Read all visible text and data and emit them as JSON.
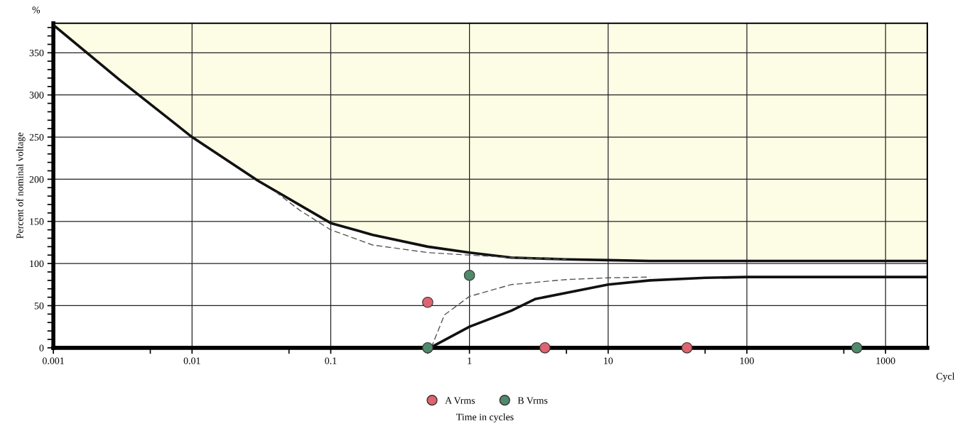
{
  "chart_data": {
    "type": "line",
    "xlabel": "Time in cycles",
    "ylabel": "Percent of nominal voltage",
    "annotations": [
      "%",
      "Cycl"
    ],
    "log": "x",
    "xlim": [
      0.001,
      2000
    ],
    "xticks": [
      0.001,
      {
        "value": 0.005,
        "label": null
      },
      0.01,
      {
        "value": 0.05,
        "label": null
      },
      0.1,
      {
        "value": 0.5,
        "label": null
      },
      1,
      {
        "value": 5,
        "label": null
      },
      10,
      {
        "value": 50,
        "label": null
      },
      100,
      {
        "value": 500,
        "label": null
      },
      1000
    ],
    "ylim": [
      0,
      385
    ],
    "yticks": [
      0,
      {
        "value": 10,
        "label": null
      },
      {
        "value": 20,
        "label": null
      },
      {
        "value": 30,
        "label": null
      },
      {
        "value": 40,
        "label": null
      },
      50,
      {
        "value": 60,
        "label": null
      },
      {
        "value": 70,
        "label": null
      },
      {
        "value": 80,
        "label": null
      },
      {
        "value": 90,
        "label": null
      },
      100,
      {
        "value": 110,
        "label": null
      },
      {
        "value": 120,
        "label": null
      },
      {
        "value": 130,
        "label": null
      },
      {
        "value": 140,
        "label": null
      },
      150,
      {
        "value": 160,
        "label": null
      },
      {
        "value": 170,
        "label": null
      },
      {
        "value": 180,
        "label": null
      },
      {
        "value": 190,
        "label": null
      },
      200,
      {
        "value": 210,
        "label": null
      },
      {
        "value": 220,
        "label": null
      },
      {
        "value": 230,
        "label": null
      },
      {
        "value": 240,
        "label": null
      },
      250,
      {
        "value": 260,
        "label": null
      },
      {
        "value": 270,
        "label": null
      },
      {
        "value": 280,
        "label": null
      },
      {
        "value": 290,
        "label": null
      },
      300,
      {
        "value": 310,
        "label": null
      },
      {
        "value": 320,
        "label": null
      },
      {
        "value": 330,
        "label": null
      },
      {
        "value": 340,
        "label": null
      },
      350,
      {
        "value": 360,
        "label": null
      },
      {
        "value": 370,
        "label": null
      },
      {
        "value": 380,
        "label": null
      }
    ],
    "grid": true,
    "legend": "bottom",
    "series": [
      {
        "color": "#111111",
        "line_style": "solid",
        "x": [
          0.001,
          0.003,
          0.01,
          0.03,
          0.1,
          0.2,
          0.5,
          1,
          2,
          5,
          10,
          20,
          2000
        ],
        "values": [
          383,
          318,
          250,
          198,
          148,
          134,
          120,
          113,
          107,
          105,
          104,
          103,
          103
        ],
        "lower": [
          383,
          318,
          250,
          198,
          148,
          134,
          120,
          113,
          107,
          105,
          104,
          103,
          103
        ],
        "upper": [
          385,
          385,
          385,
          385,
          385,
          385,
          385,
          385,
          385,
          385,
          385,
          385,
          385
        ]
      },
      {
        "color": "#555555",
        "line_style": "dashed",
        "x": [
          0.04,
          0.06,
          0.1,
          0.2,
          0.5,
          1,
          2,
          5
        ],
        "values": [
          185,
          163,
          140,
          122,
          113,
          110,
          107,
          105
        ]
      },
      {
        "color": "#111111",
        "line_style": "solid",
        "x": [
          0.52,
          1,
          2,
          3,
          10,
          20,
          50,
          100,
          2000
        ],
        "values": [
          0,
          25,
          44,
          58,
          75,
          80,
          83,
          84,
          84
        ]
      },
      {
        "color": "#555555",
        "line_style": "dashed",
        "x": [
          0.53,
          0.66,
          1,
          2,
          5,
          10,
          20
        ],
        "values": [
          0,
          39,
          61,
          75,
          81,
          83,
          84
        ]
      },
      {
        "type": "scatter",
        "name": "A Vrms",
        "color": "#e06470",
        "marker": "circle",
        "x": [
          0.5,
          3.5,
          37
        ],
        "values": [
          54,
          0,
          0
        ]
      },
      {
        "type": "scatter",
        "name": "B Vrms",
        "color": "#4f8a6c",
        "marker": "circle",
        "x": [
          0.5,
          1,
          620
        ],
        "values": [
          0,
          86,
          0
        ]
      }
    ]
  }
}
